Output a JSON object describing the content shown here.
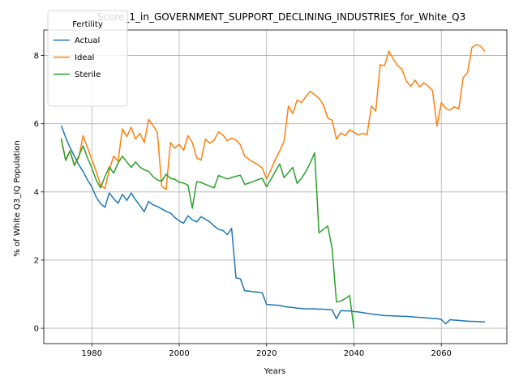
{
  "chart_data": {
    "type": "line",
    "title": "Score_1_in_GOVERNMENT_SUPPORT_DECLINING_INDUSTRIES_for_White_Q3",
    "xlabel": "Years",
    "ylabel": "% of White Q3_IQ Population",
    "xlim": [
      1969,
      2075
    ],
    "ylim": [
      -0.45,
      8.75
    ],
    "xticks": [
      1980,
      2000,
      2020,
      2040,
      2060
    ],
    "yticks": [
      0,
      2,
      4,
      6,
      8
    ],
    "grid": true,
    "legend": {
      "title": "Fertility",
      "placement": "top-left"
    },
    "series": [
      {
        "name": "Actual",
        "color": "#1f77b4",
        "points": [
          [
            1973,
            5.95
          ],
          [
            1974,
            5.6
          ],
          [
            1975,
            5.3
          ],
          [
            1976,
            5.05
          ],
          [
            1977,
            4.8
          ],
          [
            1978,
            4.6
          ],
          [
            1979,
            4.35
          ],
          [
            1980,
            4.15
          ],
          [
            1981,
            3.85
          ],
          [
            1982,
            3.65
          ],
          [
            1983,
            3.55
          ],
          [
            1984,
            3.97
          ],
          [
            1985,
            3.8
          ],
          [
            1986,
            3.67
          ],
          [
            1987,
            3.93
          ],
          [
            1988,
            3.75
          ],
          [
            1989,
            3.97
          ],
          [
            1990,
            3.77
          ],
          [
            1991,
            3.6
          ],
          [
            1992,
            3.42
          ],
          [
            1993,
            3.72
          ],
          [
            1994,
            3.62
          ],
          [
            1995,
            3.57
          ],
          [
            1996,
            3.5
          ],
          [
            1997,
            3.43
          ],
          [
            1998,
            3.38
          ],
          [
            1999,
            3.25
          ],
          [
            2000,
            3.15
          ],
          [
            2001,
            3.08
          ],
          [
            2002,
            3.3
          ],
          [
            2003,
            3.18
          ],
          [
            2004,
            3.12
          ],
          [
            2005,
            3.27
          ],
          [
            2006,
            3.2
          ],
          [
            2007,
            3.12
          ],
          [
            2008,
            3.0
          ],
          [
            2009,
            2.9
          ],
          [
            2010,
            2.87
          ],
          [
            2011,
            2.75
          ],
          [
            2012,
            2.93
          ],
          [
            2013,
            1.48
          ],
          [
            2014,
            1.45
          ],
          [
            2015,
            1.1
          ],
          [
            2016,
            1.09
          ],
          [
            2017,
            1.07
          ],
          [
            2018,
            1.06
          ],
          [
            2019,
            1.04
          ],
          [
            2020,
            0.7
          ],
          [
            2021,
            0.69
          ],
          [
            2022,
            0.68
          ],
          [
            2023,
            0.67
          ],
          [
            2024,
            0.64
          ],
          [
            2025,
            0.62
          ],
          [
            2026,
            0.61
          ],
          [
            2027,
            0.59
          ],
          [
            2028,
            0.58
          ],
          [
            2029,
            0.57
          ],
          [
            2030,
            0.57
          ],
          [
            2031,
            0.57
          ],
          [
            2032,
            0.56
          ],
          [
            2033,
            0.56
          ],
          [
            2034,
            0.55
          ],
          [
            2035,
            0.54
          ],
          [
            2036,
            0.28
          ],
          [
            2037,
            0.52
          ],
          [
            2038,
            0.51
          ],
          [
            2039,
            0.51
          ],
          [
            2040,
            0.49
          ],
          [
            2041,
            0.48
          ],
          [
            2042,
            0.46
          ],
          [
            2043,
            0.44
          ],
          [
            2044,
            0.42
          ],
          [
            2045,
            0.4
          ],
          [
            2046,
            0.39
          ],
          [
            2047,
            0.37
          ],
          [
            2048,
            0.37
          ],
          [
            2049,
            0.36
          ],
          [
            2050,
            0.36
          ],
          [
            2051,
            0.35
          ],
          [
            2052,
            0.35
          ],
          [
            2053,
            0.34
          ],
          [
            2054,
            0.33
          ],
          [
            2055,
            0.32
          ],
          [
            2056,
            0.31
          ],
          [
            2057,
            0.3
          ],
          [
            2058,
            0.29
          ],
          [
            2059,
            0.28
          ],
          [
            2060,
            0.26
          ],
          [
            2061,
            0.13
          ],
          [
            2062,
            0.25
          ],
          [
            2063,
            0.24
          ],
          [
            2064,
            0.23
          ],
          [
            2065,
            0.22
          ],
          [
            2066,
            0.21
          ],
          [
            2067,
            0.2
          ],
          [
            2068,
            0.2
          ],
          [
            2069,
            0.19
          ],
          [
            2070,
            0.19
          ]
        ]
      },
      {
        "name": "Ideal",
        "color": "#ff7f0e",
        "points": [
          [
            1973,
            5.55
          ],
          [
            1974,
            4.95
          ],
          [
            1975,
            5.2
          ],
          [
            1976,
            4.8
          ],
          [
            1977,
            5.0
          ],
          [
            1978,
            5.65
          ],
          [
            1979,
            5.3
          ],
          [
            1980,
            4.95
          ],
          [
            1981,
            4.6
          ],
          [
            1982,
            4.2
          ],
          [
            1983,
            4.1
          ],
          [
            1984,
            4.65
          ],
          [
            1985,
            5.05
          ],
          [
            1986,
            4.9
          ],
          [
            1987,
            5.85
          ],
          [
            1988,
            5.62
          ],
          [
            1989,
            5.9
          ],
          [
            1990,
            5.55
          ],
          [
            1991,
            5.72
          ],
          [
            1992,
            5.45
          ],
          [
            1993,
            6.13
          ],
          [
            1994,
            5.95
          ],
          [
            1995,
            5.75
          ],
          [
            1996,
            4.17
          ],
          [
            1997,
            4.07
          ],
          [
            1998,
            5.45
          ],
          [
            1999,
            5.28
          ],
          [
            2000,
            5.4
          ],
          [
            2001,
            5.22
          ],
          [
            2002,
            5.65
          ],
          [
            2003,
            5.45
          ],
          [
            2004,
            5.0
          ],
          [
            2005,
            4.93
          ],
          [
            2006,
            5.55
          ],
          [
            2007,
            5.43
          ],
          [
            2008,
            5.52
          ],
          [
            2009,
            5.76
          ],
          [
            2010,
            5.67
          ],
          [
            2011,
            5.5
          ],
          [
            2012,
            5.58
          ],
          [
            2013,
            5.52
          ],
          [
            2014,
            5.38
          ],
          [
            2015,
            5.05
          ],
          [
            2016,
            4.95
          ],
          [
            2017,
            4.87
          ],
          [
            2018,
            4.8
          ],
          [
            2019,
            4.7
          ],
          [
            2020,
            4.38
          ],
          [
            2021,
            4.65
          ],
          [
            2022,
            4.95
          ],
          [
            2023,
            5.2
          ],
          [
            2024,
            5.48
          ],
          [
            2025,
            6.52
          ],
          [
            2026,
            6.3
          ],
          [
            2027,
            6.7
          ],
          [
            2028,
            6.62
          ],
          [
            2029,
            6.8
          ],
          [
            2030,
            6.95
          ],
          [
            2031,
            6.85
          ],
          [
            2032,
            6.75
          ],
          [
            2033,
            6.55
          ],
          [
            2034,
            6.17
          ],
          [
            2035,
            6.1
          ],
          [
            2036,
            5.55
          ],
          [
            2037,
            5.73
          ],
          [
            2038,
            5.65
          ],
          [
            2039,
            5.82
          ],
          [
            2040,
            5.75
          ],
          [
            2041,
            5.67
          ],
          [
            2042,
            5.72
          ],
          [
            2043,
            5.68
          ],
          [
            2044,
            6.52
          ],
          [
            2045,
            6.37
          ],
          [
            2046,
            7.73
          ],
          [
            2047,
            7.7
          ],
          [
            2048,
            8.13
          ],
          [
            2049,
            7.9
          ],
          [
            2050,
            7.7
          ],
          [
            2051,
            7.6
          ],
          [
            2052,
            7.25
          ],
          [
            2053,
            7.1
          ],
          [
            2054,
            7.28
          ],
          [
            2055,
            7.08
          ],
          [
            2056,
            7.2
          ],
          [
            2057,
            7.1
          ],
          [
            2058,
            6.97
          ],
          [
            2059,
            5.93
          ],
          [
            2060,
            6.62
          ],
          [
            2061,
            6.45
          ],
          [
            2062,
            6.4
          ],
          [
            2063,
            6.5
          ],
          [
            2064,
            6.43
          ],
          [
            2065,
            7.35
          ],
          [
            2066,
            7.5
          ],
          [
            2067,
            8.23
          ],
          [
            2068,
            8.32
          ],
          [
            2069,
            8.27
          ],
          [
            2070,
            8.12
          ]
        ]
      },
      {
        "name": "Sterile",
        "color": "#2ca02c",
        "points": [
          [
            1973,
            5.57
          ],
          [
            1974,
            4.92
          ],
          [
            1975,
            5.2
          ],
          [
            1976,
            4.77
          ],
          [
            1977,
            5.05
          ],
          [
            1978,
            5.35
          ],
          [
            1979,
            5.0
          ],
          [
            1980,
            4.7
          ],
          [
            1981,
            4.35
          ],
          [
            1982,
            4.12
          ],
          [
            1983,
            4.45
          ],
          [
            1984,
            4.73
          ],
          [
            1985,
            4.55
          ],
          [
            1986,
            4.85
          ],
          [
            1987,
            5.05
          ],
          [
            1988,
            4.88
          ],
          [
            1989,
            4.72
          ],
          [
            1990,
            4.88
          ],
          [
            1991,
            4.73
          ],
          [
            1992,
            4.65
          ],
          [
            1993,
            4.6
          ],
          [
            1994,
            4.45
          ],
          [
            1995,
            4.35
          ],
          [
            1996,
            4.32
          ],
          [
            1997,
            4.52
          ],
          [
            1998,
            4.4
          ],
          [
            1999,
            4.37
          ],
          [
            2000,
            4.28
          ],
          [
            2001,
            4.26
          ],
          [
            2002,
            4.2
          ],
          [
            2003,
            3.52
          ],
          [
            2004,
            4.3
          ],
          [
            2005,
            4.28
          ],
          [
            2006,
            4.22
          ],
          [
            2007,
            4.17
          ],
          [
            2008,
            4.12
          ],
          [
            2009,
            4.48
          ],
          [
            2010,
            4.43
          ],
          [
            2011,
            4.38
          ],
          [
            2012,
            4.42
          ],
          [
            2013,
            4.46
          ],
          [
            2014,
            4.49
          ],
          [
            2015,
            4.22
          ],
          [
            2016,
            4.26
          ],
          [
            2017,
            4.31
          ],
          [
            2018,
            4.36
          ],
          [
            2019,
            4.4
          ],
          [
            2020,
            4.15
          ],
          [
            2021,
            4.37
          ],
          [
            2022,
            4.6
          ],
          [
            2023,
            4.82
          ],
          [
            2024,
            4.42
          ],
          [
            2025,
            4.57
          ],
          [
            2026,
            4.72
          ],
          [
            2027,
            4.25
          ],
          [
            2028,
            4.4
          ],
          [
            2029,
            4.6
          ],
          [
            2030,
            4.85
          ],
          [
            2031,
            5.15
          ],
          [
            2032,
            2.8
          ],
          [
            2033,
            2.9
          ],
          [
            2034,
            3.0
          ],
          [
            2035,
            2.35
          ],
          [
            2036,
            0.77
          ],
          [
            2037,
            0.8
          ],
          [
            2038,
            0.87
          ],
          [
            2039,
            0.96
          ],
          [
            2040,
            0.0
          ]
        ]
      }
    ]
  }
}
